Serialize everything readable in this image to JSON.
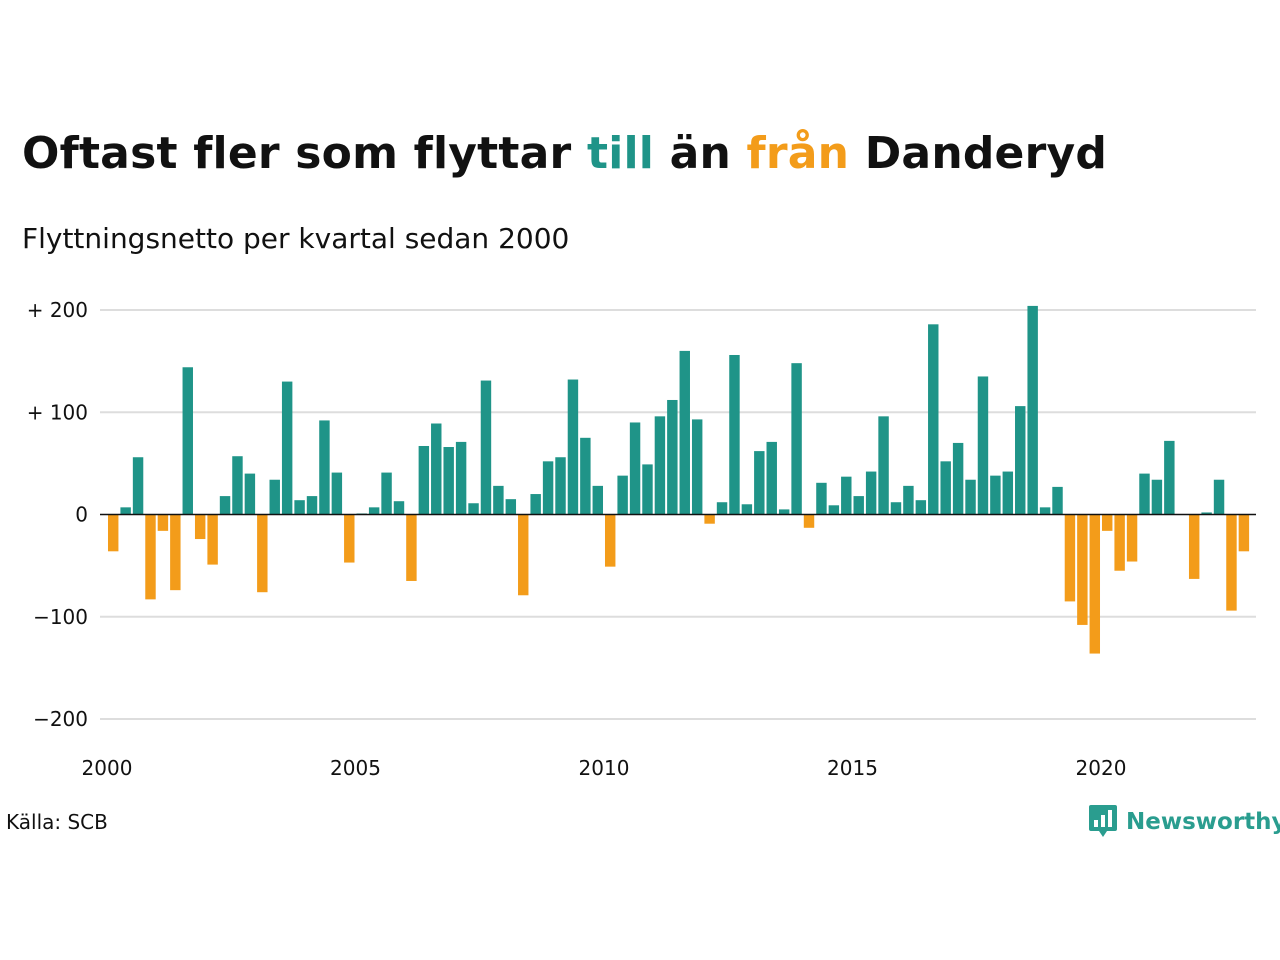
{
  "header": {
    "title_part1": "Oftast fler som flyttar ",
    "title_till": "till",
    "title_part2": " än ",
    "title_fran": "från",
    "title_part3": " Danderyd",
    "subtitle": "Flyttningsnetto per kvartal sedan 2000"
  },
  "footer": {
    "source": "Källa: SCB",
    "brand": "Newsworthy",
    "brand_icon": "bar-chart-speech-bubble-icon"
  },
  "colors": {
    "positive": "#1f9488",
    "negative": "#f39c1a",
    "grid": "#dddddd",
    "axis": "#111111"
  },
  "chart_data": {
    "type": "bar",
    "title": "Oftast fler som flyttar till än från Danderyd",
    "subtitle": "Flyttningsnetto per kvartal sedan 2000",
    "xlabel": "",
    "ylabel": "",
    "x_start": 2000,
    "periods_per_year": 4,
    "xlim": [
      2000,
      2023
    ],
    "ylim": [
      -200,
      200
    ],
    "y_ticks": [
      200,
      100,
      0,
      -100,
      -200
    ],
    "y_tick_labels": [
      "+ 200",
      "+ 100",
      "0",
      "−100",
      "−200"
    ],
    "x_ticks": [
      2000,
      2005,
      2010,
      2015,
      2020
    ],
    "x_tick_labels": [
      "2000",
      "2005",
      "2010",
      "2015",
      "2020"
    ],
    "grid": true,
    "legend": "none",
    "values": [
      -36,
      7,
      56,
      -83,
      -16,
      -74,
      144,
      -24,
      -49,
      18,
      57,
      40,
      -76,
      34,
      130,
      14,
      18,
      92,
      41,
      -47,
      1,
      7,
      41,
      13,
      -65,
      67,
      89,
      66,
      71,
      11,
      131,
      28,
      15,
      -79,
      20,
      52,
      56,
      132,
      75,
      28,
      -51,
      38,
      90,
      49,
      96,
      112,
      160,
      93,
      -9,
      12,
      156,
      10,
      62,
      71,
      5,
      148,
      -13,
      31,
      9,
      37,
      18,
      42,
      96,
      12,
      28,
      14,
      186,
      52,
      70,
      34,
      135,
      38,
      42,
      106,
      204,
      7,
      27,
      -85,
      -108,
      -136,
      -16,
      -55,
      -46,
      40,
      34,
      72,
      0,
      -63,
      2,
      34,
      -94,
      -36
    ]
  }
}
